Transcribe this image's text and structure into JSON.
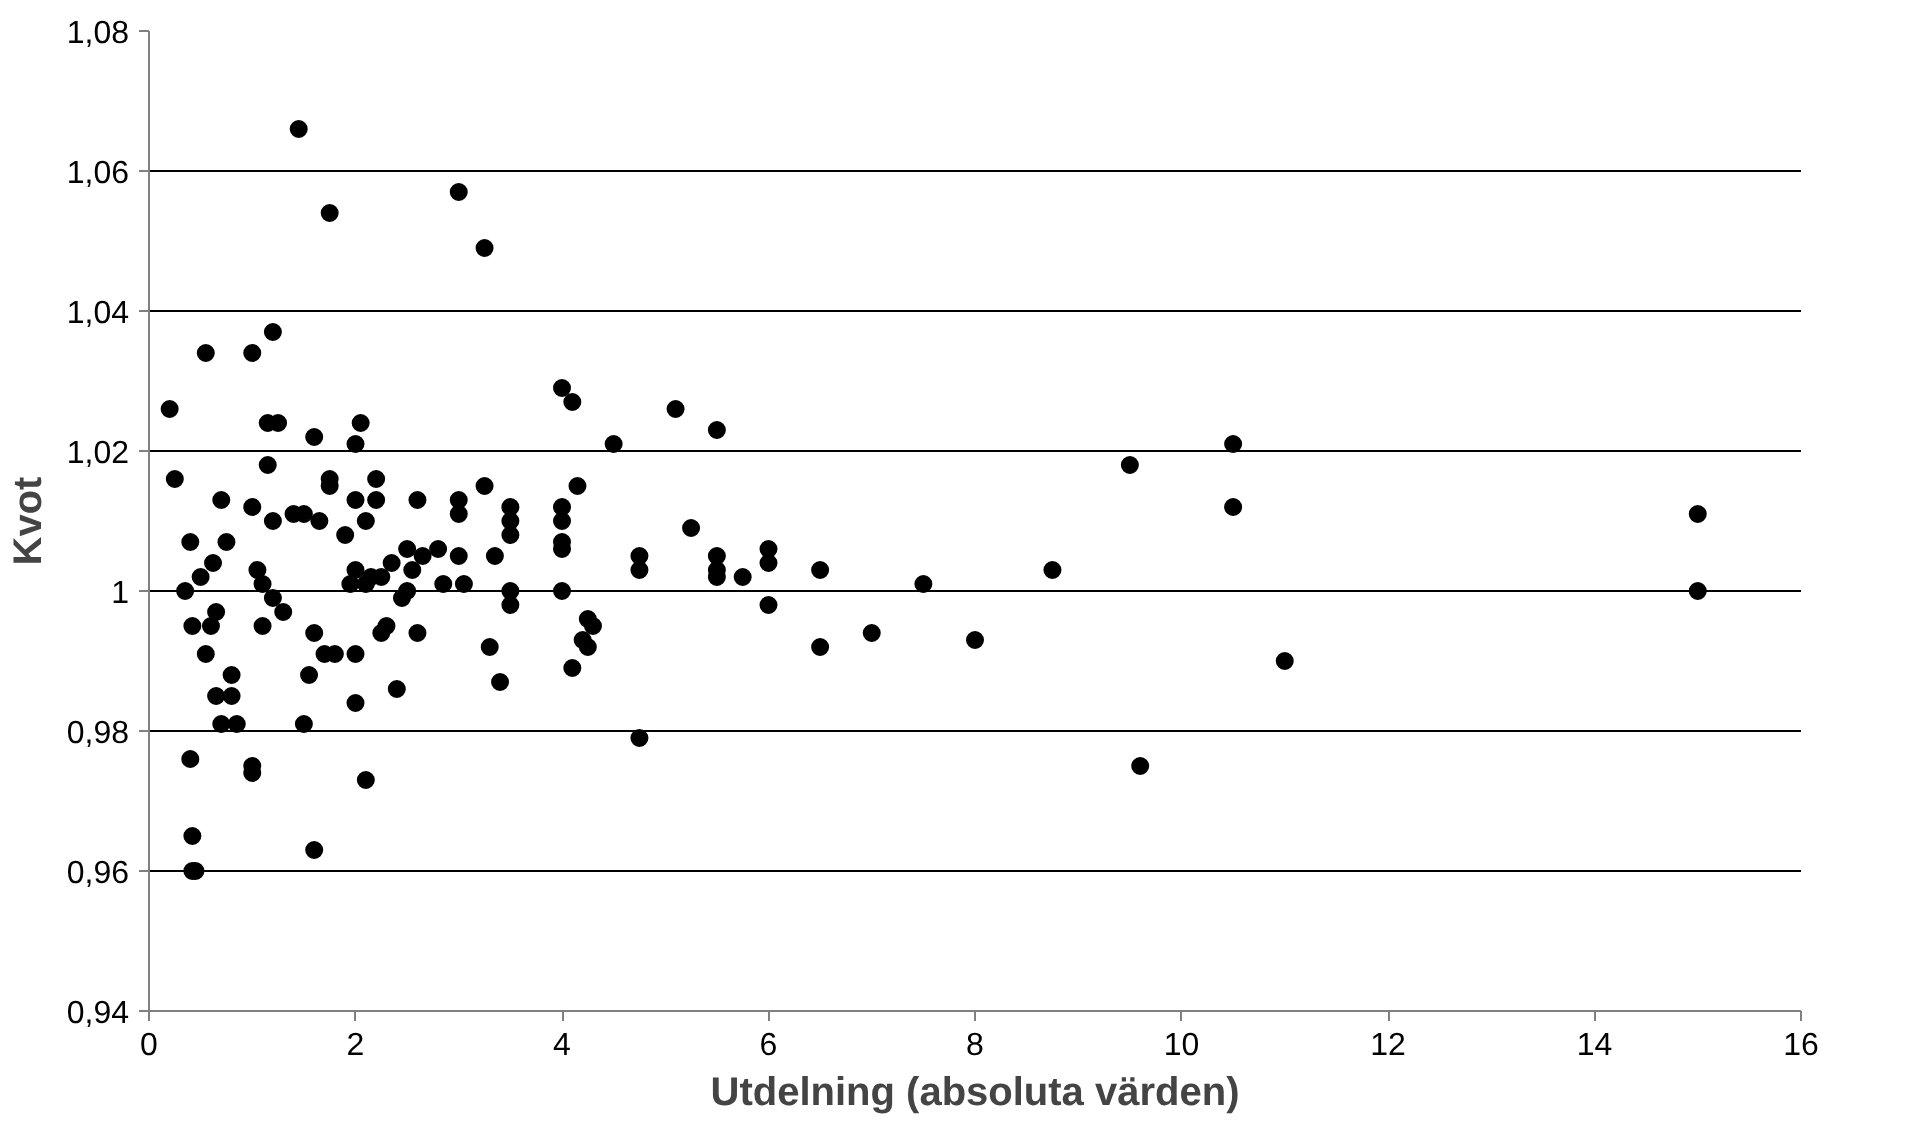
{
  "chart_data": {
    "type": "scatter",
    "xlabel": "Utdelning (absoluta värden)",
    "ylabel": "Kvot",
    "marker": "circle",
    "grid": "y",
    "color": "#000000",
    "xlim": [
      0,
      16
    ],
    "xticks": [
      0,
      2,
      4,
      6,
      8,
      10,
      12,
      14,
      16
    ],
    "ylim": [
      0.94,
      1.08
    ],
    "yticks": [
      {
        "value": 0.94,
        "label": "0,94"
      },
      {
        "value": 0.96,
        "label": "0,96"
      },
      {
        "value": 0.98,
        "label": "0,98"
      },
      {
        "value": 1,
        "label": "1"
      },
      {
        "value": 1.02,
        "label": "1,02"
      },
      {
        "value": 1.04,
        "label": "1,04"
      },
      {
        "value": 1.06,
        "label": "1,06"
      },
      {
        "value": 1.08,
        "label": "1,08"
      }
    ],
    "x": [
      0.2,
      0.25,
      0.35,
      0.4,
      0.42,
      0.4,
      0.42,
      0.42,
      0.45,
      0.5,
      0.55,
      0.55,
      0.6,
      0.62,
      0.65,
      0.65,
      0.7,
      0.7,
      0.75,
      0.8,
      0.8,
      0.85,
      1.0,
      1.0,
      1.0,
      1.0,
      1.05,
      1.1,
      1.1,
      1.15,
      1.15,
      1.2,
      1.2,
      1.2,
      1.25,
      1.3,
      1.4,
      1.45,
      1.5,
      1.5,
      1.55,
      1.6,
      1.6,
      1.6,
      1.65,
      1.7,
      1.75,
      1.75,
      1.75,
      1.8,
      1.9,
      1.95,
      2.0,
      2.0,
      2.0,
      2.0,
      2.0,
      2.05,
      2.1,
      2.1,
      2.1,
      2.15,
      2.2,
      2.2,
      2.25,
      2.25,
      2.3,
      2.35,
      2.4,
      2.45,
      2.5,
      2.5,
      2.55,
      2.6,
      2.6,
      2.65,
      2.8,
      2.85,
      3.0,
      3.0,
      3.0,
      3.0,
      3.05,
      3.25,
      3.25,
      3.3,
      3.35,
      3.4,
      3.5,
      3.5,
      3.5,
      3.5,
      3.5,
      4.0,
      4.0,
      4.0,
      4.0,
      4.0,
      4.0,
      4.1,
      4.1,
      4.15,
      4.2,
      4.25,
      4.3,
      4.25,
      4.5,
      4.75,
      4.75,
      4.75,
      5.1,
      5.25,
      5.5,
      5.5,
      5.5,
      5.5,
      5.75,
      6.0,
      6.0,
      6.0,
      6.5,
      6.5,
      7.0,
      7.5,
      8.0,
      8.75,
      9.5,
      9.6,
      10.5,
      10.5,
      11.0,
      15.0,
      15.0
    ],
    "values": [
      1.026,
      1.016,
      1.0,
      1.007,
      0.995,
      0.976,
      0.965,
      0.96,
      0.96,
      1.002,
      0.991,
      1.034,
      0.995,
      1.004,
      0.997,
      0.985,
      0.981,
      1.013,
      1.007,
      0.985,
      0.988,
      0.981,
      1.034,
      1.012,
      0.975,
      0.974,
      1.003,
      1.001,
      0.995,
      1.024,
      1.018,
      1.037,
      1.01,
      0.999,
      1.024,
      0.997,
      1.011,
      1.066,
      1.011,
      0.981,
      0.988,
      1.022,
      0.994,
      0.963,
      1.01,
      0.991,
      1.054,
      1.016,
      1.015,
      0.991,
      1.008,
      1.001,
      1.021,
      1.013,
      1.003,
      0.991,
      0.984,
      1.024,
      1.01,
      1.001,
      0.973,
      1.002,
      1.016,
      1.013,
      1.002,
      0.994,
      0.995,
      1.004,
      0.986,
      0.999,
      1.006,
      1.0,
      1.003,
      1.013,
      0.994,
      1.005,
      1.006,
      1.001,
      1.057,
      1.013,
      1.011,
      1.005,
      1.001,
      1.049,
      1.015,
      0.992,
      1.005,
      0.987,
      1.012,
      1.01,
      1.008,
      1.0,
      0.998,
      1.029,
      1.012,
      1.01,
      1.007,
      1.006,
      1.0,
      1.027,
      0.989,
      1.015,
      0.993,
      0.996,
      0.995,
      0.992,
      1.021,
      1.005,
      1.003,
      0.979,
      1.026,
      1.009,
      1.023,
      1.005,
      1.003,
      1.002,
      1.002,
      1.006,
      1.004,
      0.998,
      1.003,
      0.992,
      0.994,
      1.001,
      0.993,
      1.003,
      1.018,
      0.975,
      1.021,
      1.012,
      0.99,
      1.011,
      1.0
    ]
  }
}
